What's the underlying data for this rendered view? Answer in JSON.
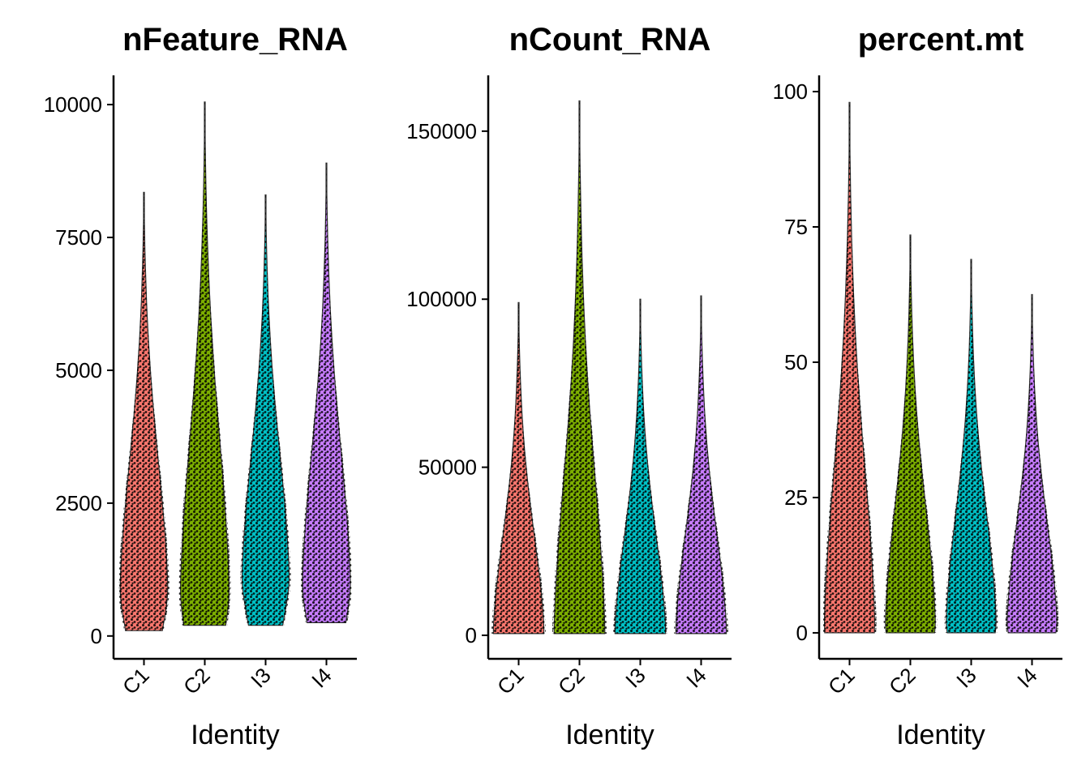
{
  "chart_data": [
    {
      "type": "violin",
      "title": "nFeature_RNA",
      "x_label": "Identity",
      "categories": [
        "C1",
        "C2",
        "I3",
        "I4"
      ],
      "colors": [
        "#F8766D",
        "#7CAE00",
        "#00BFC4",
        "#C77CFF"
      ],
      "min": [
        100,
        200,
        200,
        250
      ],
      "mode": [
        1000,
        1000,
        1200,
        1100
      ],
      "max": [
        8350,
        10050,
        8300,
        8900
      ],
      "ylim": [
        -430,
        10550
      ],
      "yticks": [
        0,
        2500,
        5000,
        7500,
        10000
      ]
    },
    {
      "type": "violin",
      "title": "nCount_RNA",
      "x_label": "Identity",
      "categories": [
        "C1",
        "C2",
        "I3",
        "I4"
      ],
      "colors": [
        "#F8766D",
        "#7CAE00",
        "#00BFC4",
        "#C77CFF"
      ],
      "min": [
        500,
        500,
        500,
        500
      ],
      "mode": [
        2500,
        2500,
        2500,
        2500
      ],
      "max": [
        99000,
        159000,
        100000,
        101000
      ],
      "ylim": [
        -7000,
        166600
      ],
      "yticks": [
        0,
        50000,
        100000,
        150000
      ]
    },
    {
      "type": "violin",
      "title": "percent.mt",
      "x_label": "Identity",
      "categories": [
        "C1",
        "C2",
        "I3",
        "I4"
      ],
      "colors": [
        "#F8766D",
        "#7CAE00",
        "#00BFC4",
        "#C77CFF"
      ],
      "min": [
        0,
        0,
        0,
        0
      ],
      "mode": [
        3,
        3,
        3,
        3
      ],
      "max": [
        98,
        73.5,
        69,
        62.5
      ],
      "ylim": [
        -4.8,
        103
      ],
      "yticks": [
        0,
        25,
        50,
        75,
        100
      ]
    }
  ]
}
